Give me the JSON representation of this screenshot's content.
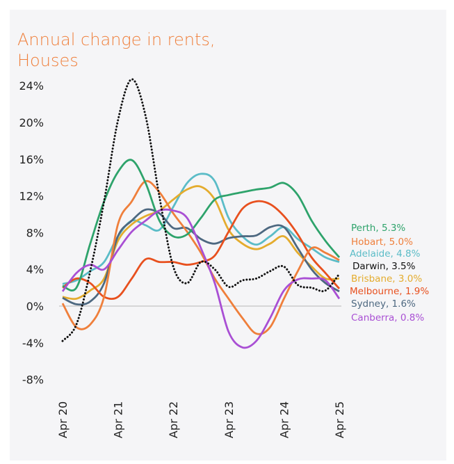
{
  "chart_data": {
    "type": "line",
    "title": "Annual change in rents, Houses",
    "xlabel": "",
    "ylabel": "",
    "ylim": [
      -8,
      24
    ],
    "y_ticks": [
      "-8%",
      "-4%",
      "0%",
      "4%",
      "8%",
      "12%",
      "16%",
      "20%",
      "24%"
    ],
    "y_tick_values": [
      -8,
      -4,
      0,
      4,
      8,
      12,
      16,
      20,
      24
    ],
    "x_ticks": [
      "Apr 20",
      "Apr 21",
      "Apr 22",
      "Apr 23",
      "Apr 24",
      "Apr 25"
    ],
    "x_tick_values": [
      "2020-04",
      "2021-04",
      "2022-04",
      "2023-04",
      "2024-04",
      "2025-04"
    ],
    "x": [
      "2020-04",
      "2020-07",
      "2020-10",
      "2021-01",
      "2021-04",
      "2021-07",
      "2021-10",
      "2022-01",
      "2022-04",
      "2022-07",
      "2022-10",
      "2023-01",
      "2023-04",
      "2023-07",
      "2023-10",
      "2024-01",
      "2024-04",
      "2024-07",
      "2024-10",
      "2025-01",
      "2025-04"
    ],
    "grid": false,
    "zero_line": true,
    "legend_placement": "right, at line ends",
    "series": [
      {
        "name": "Perth",
        "label": "Perth, 5.3%",
        "color": "#2ea36b",
        "dashed": false,
        "values": [
          2.2,
          2.0,
          6.8,
          11.4,
          14.6,
          15.9,
          13.4,
          9.3,
          7.6,
          7.8,
          9.6,
          11.6,
          12.1,
          12.4,
          12.7,
          12.9,
          13.4,
          12.1,
          9.3,
          7.1,
          5.3
        ]
      },
      {
        "name": "Hobart",
        "label": "Hobart, 5.0%",
        "color": "#ef7f3b",
        "dashed": false,
        "values": [
          0.3,
          -2.3,
          -2.0,
          1.0,
          8.9,
          11.4,
          13.6,
          12.4,
          10.1,
          8.1,
          5.8,
          3.0,
          0.8,
          -1.3,
          -3.0,
          -2.3,
          0.8,
          3.8,
          6.3,
          5.8,
          5.0
        ]
      },
      {
        "name": "Adelaide",
        "label": "Adelaide, 4.8%",
        "color": "#5bbcc7",
        "dashed": false,
        "values": [
          2.4,
          2.8,
          3.8,
          4.8,
          7.6,
          9.3,
          8.8,
          8.3,
          10.8,
          13.4,
          14.4,
          13.6,
          9.6,
          7.6,
          6.7,
          7.6,
          8.6,
          7.3,
          6.3,
          5.3,
          4.8
        ]
      },
      {
        "name": "Darwin",
        "label": "Darwin, 3.5%",
        "color": "#111111",
        "dashed": true,
        "values": [
          -3.8,
          -2.0,
          3.8,
          11.4,
          20.2,
          24.7,
          20.7,
          11.9,
          4.3,
          2.5,
          4.8,
          4.0,
          2.1,
          2.8,
          3.0,
          3.8,
          4.3,
          2.3,
          2.0,
          1.7,
          3.5
        ]
      },
      {
        "name": "Brisbane",
        "label": "Brisbane, 3.0%",
        "color": "#e4ac2e",
        "dashed": false,
        "values": [
          1.0,
          0.8,
          1.7,
          3.0,
          7.1,
          8.9,
          9.8,
          10.4,
          11.6,
          12.7,
          13.0,
          11.6,
          8.3,
          6.8,
          6.2,
          6.8,
          7.6,
          5.8,
          4.3,
          3.0,
          3.0
        ]
      },
      {
        "name": "Melbourne",
        "label": "Melbourne, 1.9%",
        "color": "#e8501e",
        "dashed": false,
        "values": [
          2.0,
          3.0,
          2.5,
          1.0,
          1.0,
          3.0,
          5.1,
          4.8,
          4.8,
          4.5,
          4.8,
          5.5,
          8.1,
          10.6,
          11.4,
          11.1,
          9.8,
          7.8,
          5.3,
          3.6,
          1.9
        ]
      },
      {
        "name": "Sydney",
        "label": "Sydney, 1.6%",
        "color": "#4d6880",
        "dashed": false,
        "values": [
          0.9,
          0.2,
          0.5,
          2.5,
          7.6,
          9.3,
          10.5,
          10.1,
          8.5,
          8.5,
          7.3,
          6.8,
          7.4,
          7.6,
          7.7,
          8.6,
          8.6,
          6.3,
          4.0,
          2.5,
          1.6
        ]
      },
      {
        "name": "Canberra",
        "label": "Canberra, 0.8%",
        "color": "#a94fd4",
        "dashed": false,
        "values": [
          1.6,
          3.6,
          4.5,
          4.0,
          6.1,
          8.1,
          9.3,
          10.4,
          10.4,
          9.6,
          6.3,
          2.5,
          -2.8,
          -4.5,
          -3.8,
          -1.3,
          1.7,
          2.9,
          3.0,
          2.8,
          0.8
        ]
      }
    ]
  }
}
